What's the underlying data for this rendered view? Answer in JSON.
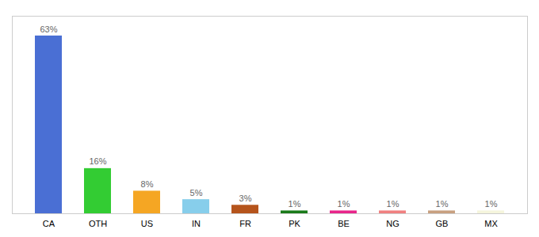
{
  "chart_data": {
    "type": "bar",
    "categories": [
      "CA",
      "OTH",
      "US",
      "IN",
      "FR",
      "PK",
      "BE",
      "NG",
      "GB",
      "MX"
    ],
    "values": [
      63,
      16,
      8,
      5,
      3,
      1,
      1,
      1,
      1,
      1
    ],
    "value_labels": [
      "63%",
      "16%",
      "8%",
      "5%",
      "3%",
      "1%",
      "1%",
      "1%",
      "1%",
      "1%"
    ],
    "colors": [
      "#4a6fd4",
      "#33cc33",
      "#f5a623",
      "#87ceeb",
      "#b5541c",
      "#1a7a1a",
      "#e8258a",
      "#f08080",
      "#c8a080",
      "#f5f5dc"
    ],
    "ylim": [
      0,
      70
    ],
    "data_labels": true,
    "tick_labels": "x"
  }
}
